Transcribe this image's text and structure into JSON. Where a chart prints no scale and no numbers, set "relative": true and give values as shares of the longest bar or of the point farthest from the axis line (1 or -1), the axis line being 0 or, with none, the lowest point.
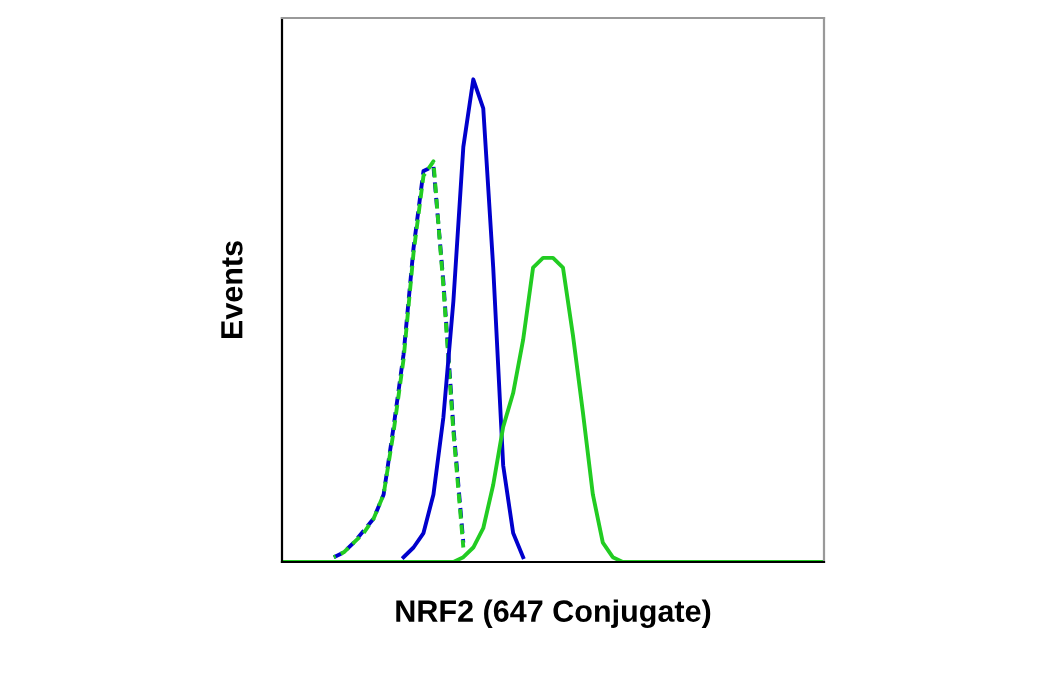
{
  "chart_data": {
    "type": "line",
    "relative": true,
    "xlabel": "NRF2 (647 Conjugate)",
    "ylabel": "Events",
    "grid": false,
    "legend": false,
    "categories": [
      null,
      null,
      null,
      null,
      null,
      null,
      null,
      null,
      null,
      null,
      null,
      null,
      null,
      null,
      null,
      null,
      null,
      null,
      null,
      null,
      null,
      null,
      null,
      null,
      null,
      null,
      null,
      null,
      null,
      null,
      null,
      null,
      null,
      null,
      null,
      null,
      null,
      null,
      null,
      null,
      null,
      null,
      null,
      null,
      null,
      null,
      null,
      null,
      null,
      null,
      null,
      null,
      null,
      null,
      null
    ],
    "series": [
      {
        "color": "#0000cc",
        "line_style": "dashed",
        "values": [
          null,
          null,
          null,
          null,
          null,
          0.01,
          0.02,
          0.04,
          0.065,
          0.09,
          0.14,
          0.28,
          0.43,
          0.65,
          0.81,
          0.82,
          0.58,
          0.28,
          0.04,
          null,
          null,
          null,
          null,
          null,
          null,
          null,
          null,
          null,
          null,
          null,
          null,
          null,
          null,
          null,
          null,
          null,
          null,
          null,
          null,
          null,
          null,
          null,
          null,
          null,
          null,
          null,
          null,
          null,
          null,
          null,
          null,
          null,
          null,
          null,
          null
        ]
      },
      {
        "color": "#22cc22",
        "line_style": "dashed",
        "values": [
          null,
          null,
          null,
          null,
          null,
          0.01,
          0.02,
          0.04,
          0.06,
          0.09,
          0.14,
          0.27,
          0.42,
          0.64,
          0.8,
          0.83,
          0.57,
          0.27,
          0.03,
          null,
          null,
          null,
          null,
          null,
          null,
          null,
          null,
          null,
          null,
          null,
          null,
          null,
          null,
          null,
          null,
          null,
          null,
          null,
          null,
          null,
          null,
          null,
          null,
          null,
          null,
          null,
          null,
          null,
          null,
          null,
          null,
          null,
          null,
          null,
          null
        ]
      },
      {
        "color": "#0000cc",
        "line_style": "solid",
        "values": [
          null,
          null,
          null,
          null,
          null,
          null,
          null,
          null,
          null,
          null,
          null,
          null,
          0.01,
          0.03,
          0.06,
          0.14,
          0.3,
          0.54,
          0.86,
          1,
          0.94,
          0.61,
          0.2,
          0.06,
          0.01,
          null,
          null,
          null,
          null,
          null,
          null,
          null,
          null,
          null,
          null,
          null,
          null,
          null,
          null,
          null,
          null,
          null,
          null,
          null,
          null,
          null,
          null,
          null,
          null,
          null,
          null,
          null,
          null,
          null,
          null
        ]
      },
      {
        "color": "#22cc22",
        "line_style": "solid",
        "values": [
          0,
          0,
          0,
          0,
          0,
          0,
          0,
          0,
          0,
          0,
          0,
          0,
          0,
          0,
          0,
          0,
          0,
          0,
          0.01,
          0.03,
          0.07,
          0.16,
          0.28,
          0.35,
          0.46,
          0.61,
          0.63,
          0.63,
          0.61,
          0.47,
          0.31,
          0.14,
          0.04,
          0.01,
          0,
          0,
          0,
          0,
          0,
          0,
          0,
          0,
          0,
          0,
          0,
          0,
          0,
          0,
          0,
          0,
          0,
          0,
          0,
          0,
          0
        ]
      }
    ]
  }
}
